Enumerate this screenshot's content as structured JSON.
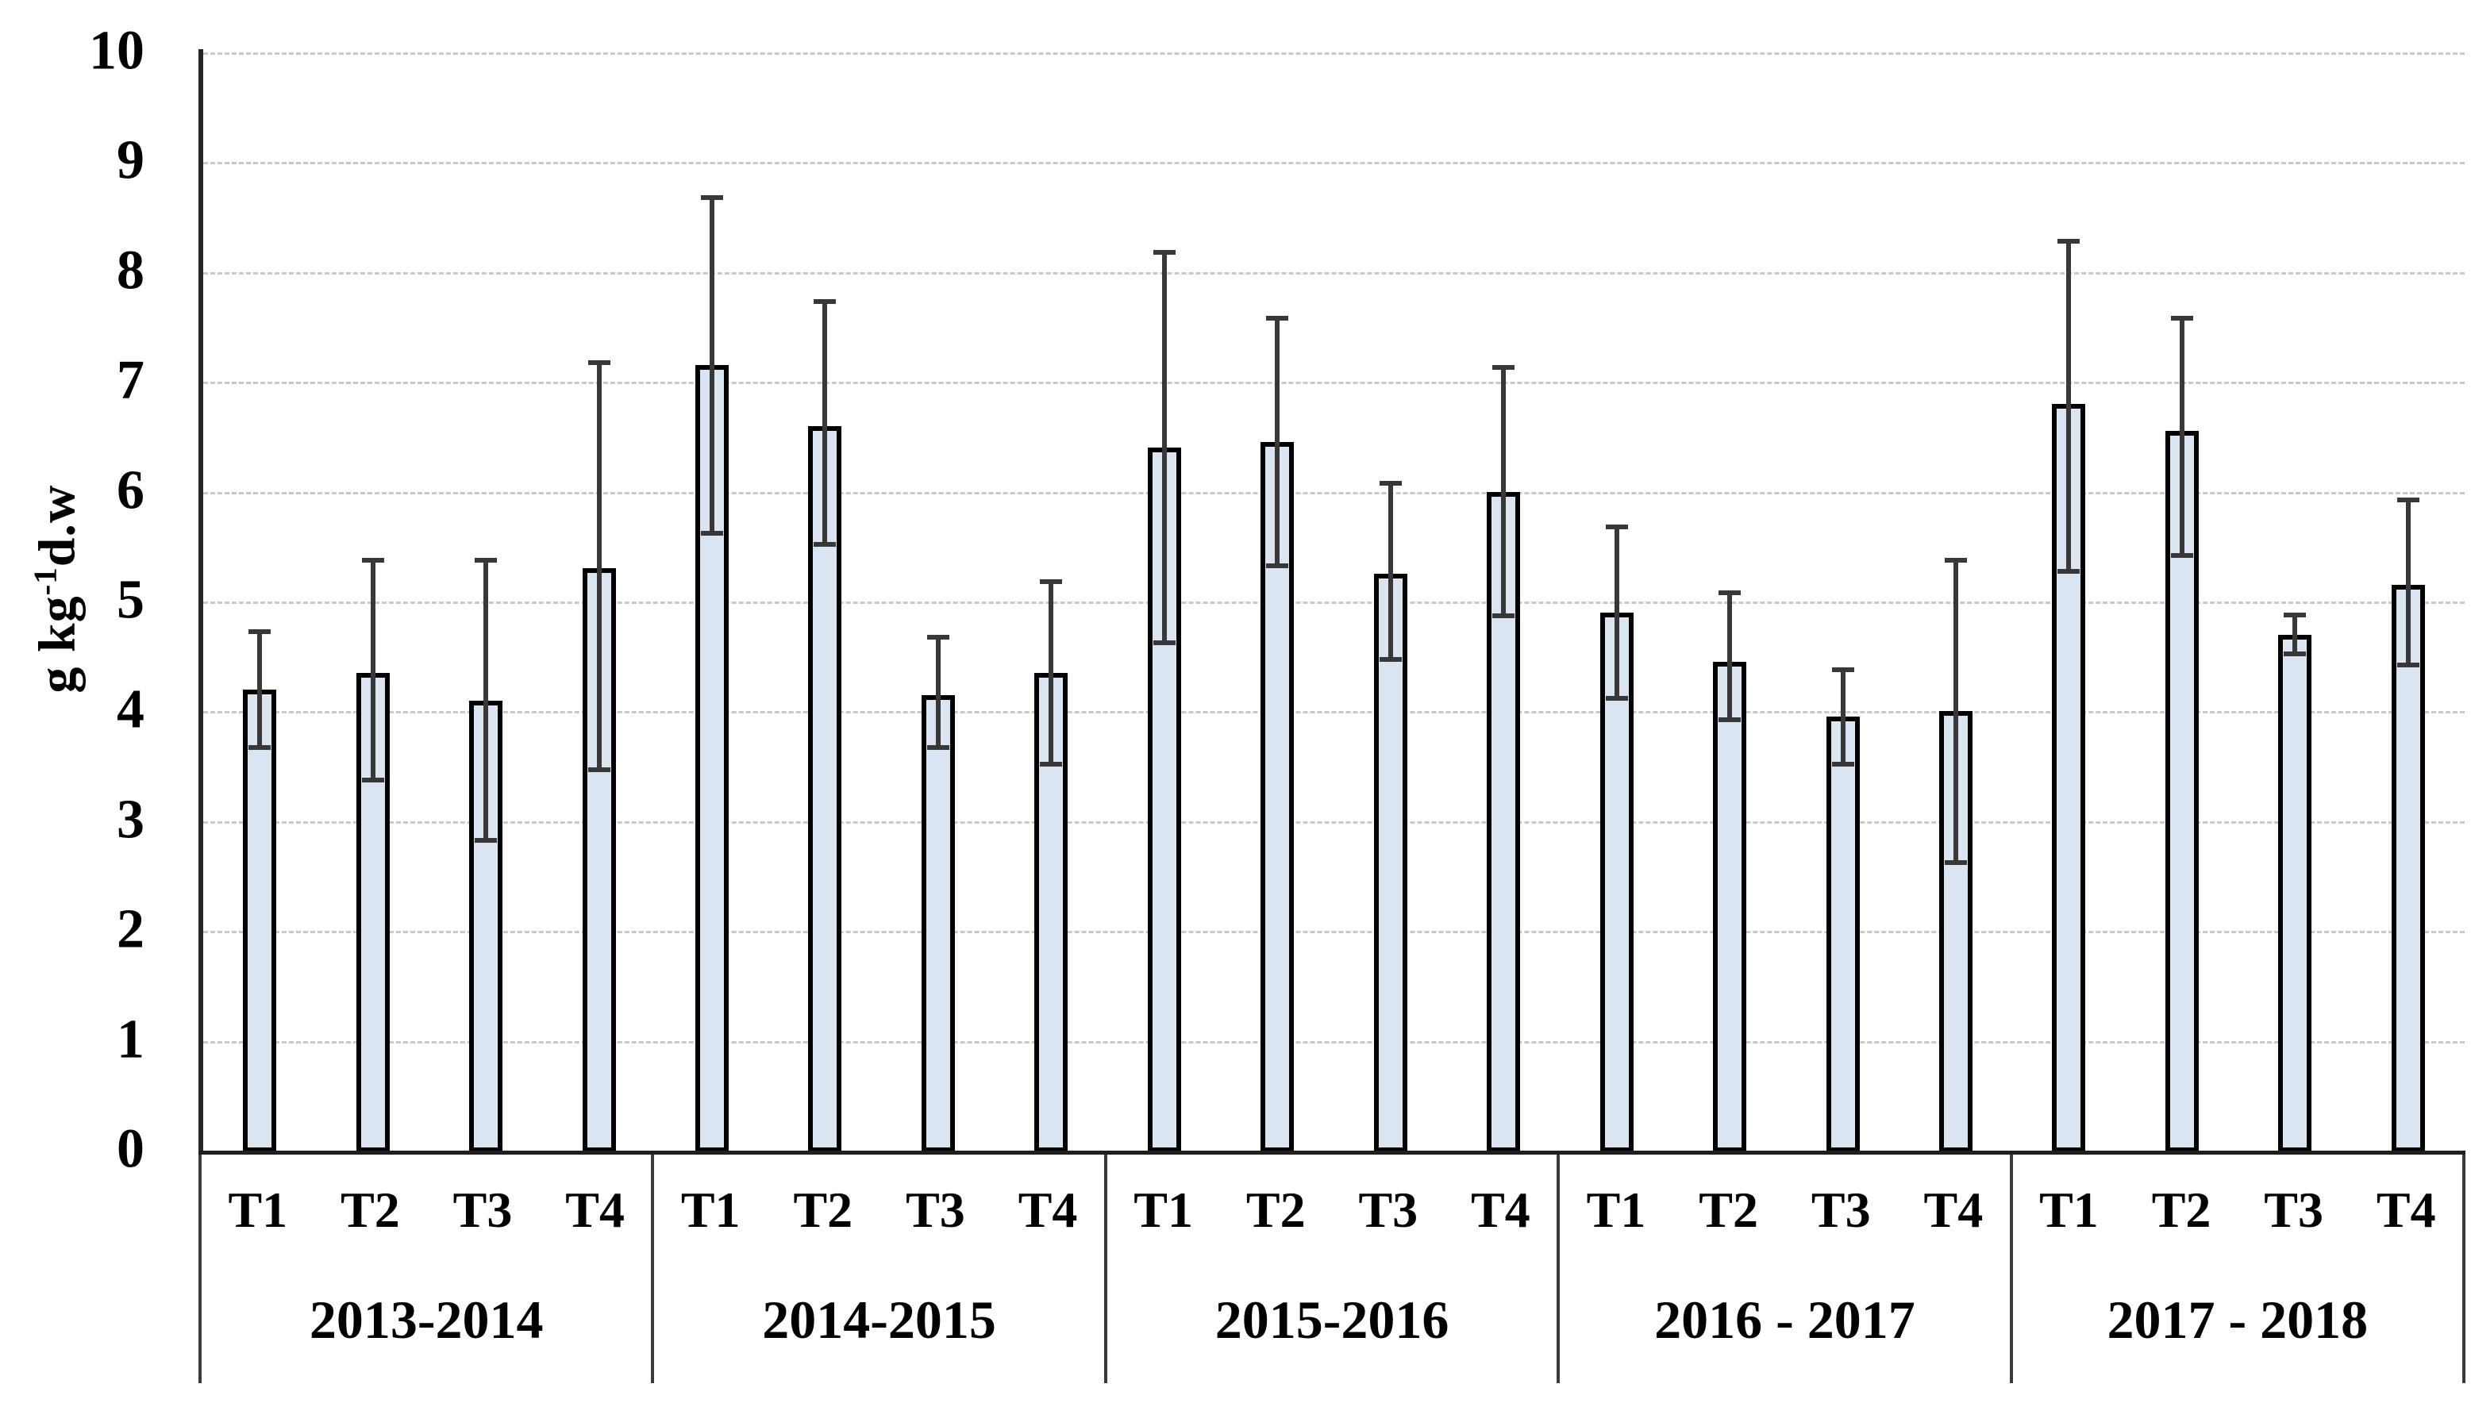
{
  "chart_data": {
    "type": "bar",
    "title": "",
    "ylabel": {
      "base": "g kg",
      "sup": "-1",
      "rest": "d.w"
    },
    "ylim": [
      0,
      10
    ],
    "yticks": [
      0,
      1,
      2,
      3,
      4,
      5,
      6,
      7,
      8,
      9,
      10
    ],
    "grid": "horizontal-dotted",
    "legend": "none",
    "categories_per_group": [
      "T1",
      "T2",
      "T3",
      "T4"
    ],
    "groups": [
      {
        "label": "2013-2014",
        "values": [
          4.2,
          4.35,
          4.1,
          5.3
        ],
        "err_low": [
          3.65,
          3.35,
          2.8,
          3.45
        ],
        "err_high": [
          4.75,
          5.4,
          5.4,
          7.2
        ]
      },
      {
        "label": "2014-2015",
        "values": [
          7.15,
          6.6,
          4.15,
          4.35
        ],
        "err_low": [
          5.6,
          5.5,
          3.65,
          3.5
        ],
        "err_high": [
          8.7,
          7.75,
          4.7,
          5.2
        ]
      },
      {
        "label": "2015-2016",
        "values": [
          6.4,
          6.45,
          5.25,
          6.0
        ],
        "err_low": [
          4.6,
          5.3,
          4.45,
          4.85
        ],
        "err_high": [
          8.2,
          7.6,
          6.1,
          7.15
        ]
      },
      {
        "label": "2016 - 2017",
        "values": [
          4.9,
          4.45,
          3.95,
          4.0
        ],
        "err_low": [
          4.1,
          3.9,
          3.5,
          2.6
        ],
        "err_high": [
          5.7,
          5.1,
          4.4,
          5.4
        ]
      },
      {
        "label": "2017 - 2018",
        "values": [
          6.8,
          6.55,
          4.7,
          5.15
        ],
        "err_low": [
          5.25,
          5.4,
          4.5,
          4.4
        ],
        "err_high": [
          8.3,
          7.6,
          4.9,
          5.95
        ]
      }
    ],
    "colors": {
      "bar_fill": "#dbe5f1",
      "bar_border": "#000000",
      "error_bar": "#383838",
      "gridline": "#c9c9c9",
      "axis": "#262626",
      "band_line": "#3a3a3a",
      "text": "#000000",
      "background": "#ffffff"
    }
  }
}
